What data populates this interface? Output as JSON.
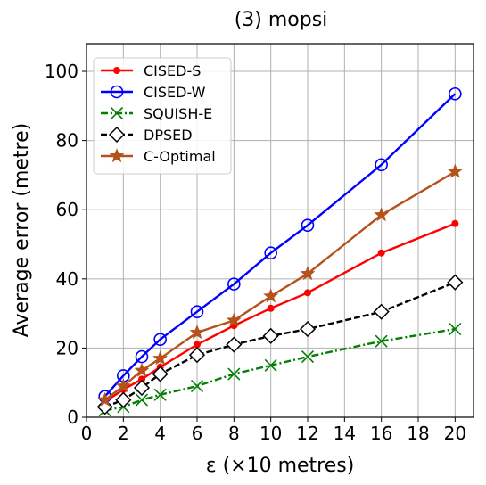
{
  "chart_data": {
    "type": "line",
    "title": "(3) mopsi",
    "xlabel": "ε (×10 metres)",
    "ylabel": "Average error (metre)",
    "xlim": [
      0,
      21
    ],
    "ylim": [
      0,
      108
    ],
    "xticks": [
      0,
      2,
      4,
      6,
      8,
      10,
      12,
      14,
      16,
      18,
      20
    ],
    "yticks": [
      0,
      20,
      40,
      60,
      80,
      100
    ],
    "grid": true,
    "legend_position": "top-left",
    "x": [
      1,
      2,
      3,
      4,
      6,
      8,
      10,
      12,
      16,
      20
    ],
    "series": [
      {
        "name": "CISED-S",
        "color": "#ff0000",
        "marker": "dot",
        "dash": "solid",
        "values": [
          4.5,
          8,
          11,
          14.5,
          21,
          26.5,
          31.5,
          36,
          47.5,
          56
        ]
      },
      {
        "name": "CISED-W",
        "color": "#0000ff",
        "marker": "circle",
        "dash": "solid",
        "values": [
          6,
          12,
          17.5,
          22.5,
          30.5,
          38.5,
          47.5,
          55.5,
          73,
          93.5
        ]
      },
      {
        "name": "SQUISH-E",
        "color": "#008000",
        "marker": "x",
        "dash": "dashdot",
        "values": [
          2,
          3,
          5,
          6.5,
          9,
          12.5,
          15,
          17.5,
          22,
          25.5
        ]
      },
      {
        "name": "DPSED",
        "color": "#000000",
        "marker": "diamond",
        "dash": "dashed",
        "values": [
          3,
          5,
          8.5,
          12.5,
          18,
          21,
          23.5,
          25.5,
          30.5,
          39
        ]
      },
      {
        "name": "C-Optimal",
        "color": "#b5521c",
        "marker": "star",
        "dash": "solid",
        "values": [
          5,
          9,
          13.5,
          17,
          24.5,
          28,
          35,
          41.5,
          58.5,
          71
        ]
      }
    ]
  }
}
